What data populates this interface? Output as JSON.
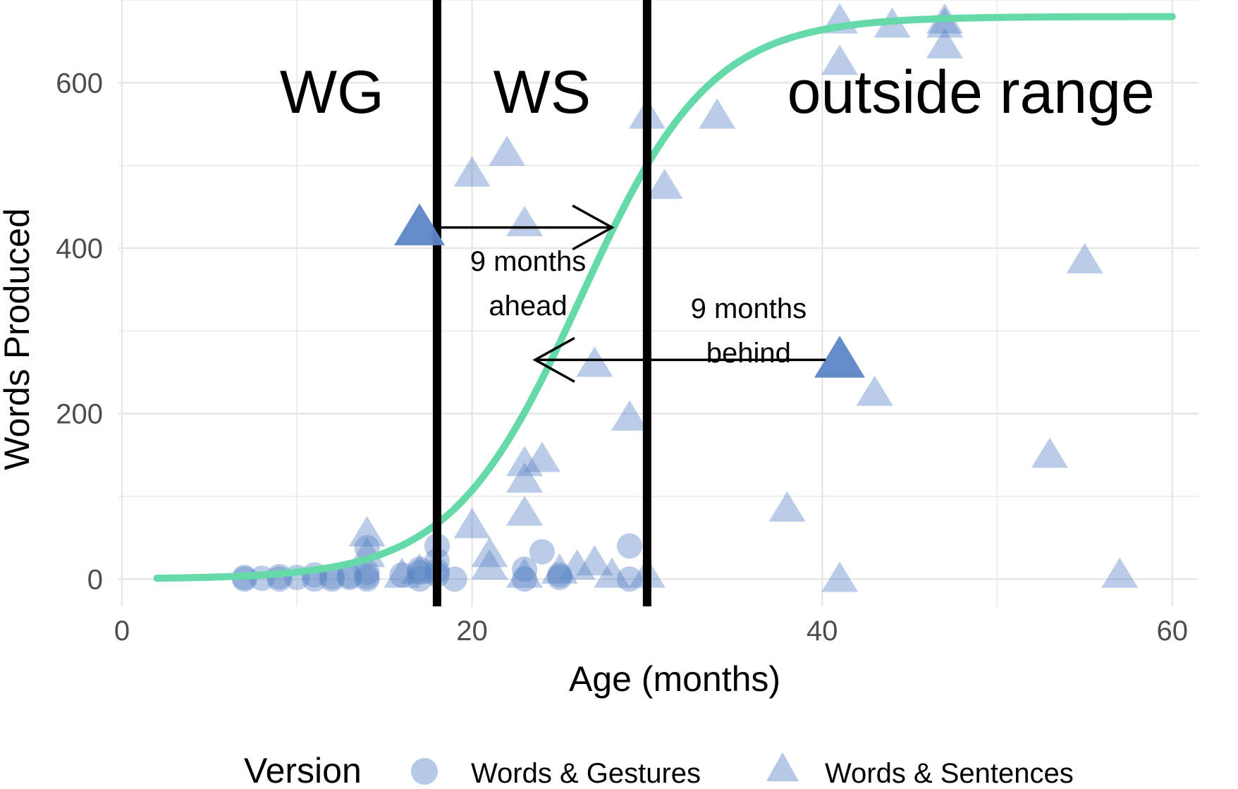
{
  "chart_data": {
    "type": "scatter",
    "xlabel": "Age (months)",
    "ylabel": "Words Produced",
    "xlim": [
      -0.2,
      61.5
    ],
    "ylim": [
      -33,
      700
    ],
    "x_ticks": [
      0,
      20,
      40,
      60
    ],
    "y_ticks": [
      0,
      200,
      400,
      600
    ],
    "grid": true,
    "colors": {
      "points": "#5b86c6",
      "curve": "#66d9a8",
      "divider": "#000000",
      "grid": "#e6e6e6"
    },
    "dividers": [
      18,
      30
    ],
    "regions": [
      {
        "label": "WG",
        "x": 12
      },
      {
        "label": "WS",
        "x": 24
      },
      {
        "label": "outside range",
        "x": 48.5
      }
    ],
    "curve": {
      "name": "",
      "type": "logistic",
      "asymptote": 680,
      "midpoint": 26.2,
      "rate": 0.27,
      "x_range": [
        2,
        60
      ]
    },
    "series": [
      {
        "name": "Words & Gestures",
        "shape": "circle",
        "points": [
          [
            7,
            0
          ],
          [
            7,
            2
          ],
          [
            8,
            1
          ],
          [
            9,
            0
          ],
          [
            9,
            3
          ],
          [
            10,
            2
          ],
          [
            11,
            0
          ],
          [
            11,
            5
          ],
          [
            12,
            0
          ],
          [
            12,
            3
          ],
          [
            13,
            4
          ],
          [
            13,
            2
          ],
          [
            14,
            0
          ],
          [
            14,
            3
          ],
          [
            14,
            8
          ],
          [
            14,
            38
          ],
          [
            16,
            5
          ],
          [
            17,
            0
          ],
          [
            17,
            8
          ],
          [
            17,
            12
          ],
          [
            18,
            5
          ],
          [
            18,
            10
          ],
          [
            18,
            22
          ],
          [
            18,
            40
          ],
          [
            19,
            0
          ],
          [
            23,
            0
          ],
          [
            23,
            12
          ],
          [
            24,
            33
          ],
          [
            25,
            2
          ],
          [
            25,
            5
          ],
          [
            29,
            0
          ],
          [
            29,
            40
          ]
        ]
      },
      {
        "name": "Words & Sentences",
        "shape": "triangle",
        "points": [
          [
            14,
            55
          ],
          [
            14,
            30
          ],
          [
            16,
            5
          ],
          [
            17,
            10
          ],
          [
            20,
            65
          ],
          [
            20,
            490
          ],
          [
            21,
            30
          ],
          [
            21,
            15
          ],
          [
            22,
            515
          ],
          [
            23,
            430
          ],
          [
            23,
            140
          ],
          [
            23,
            120
          ],
          [
            23,
            80
          ],
          [
            23,
            5
          ],
          [
            24,
            145
          ],
          [
            25,
            10
          ],
          [
            26,
            15
          ],
          [
            27,
            260
          ],
          [
            27,
            20
          ],
          [
            28,
            5
          ],
          [
            29,
            195
          ],
          [
            30,
            5
          ],
          [
            30,
            560
          ],
          [
            31,
            475
          ],
          [
            34,
            560
          ],
          [
            38,
            85
          ],
          [
            41,
            675
          ],
          [
            41,
            625
          ],
          [
            41,
            0
          ],
          [
            43,
            225
          ],
          [
            44,
            670
          ],
          [
            47,
            675
          ],
          [
            47,
            670
          ],
          [
            47,
            645
          ],
          [
            53,
            150
          ],
          [
            55,
            385
          ],
          [
            57,
            5
          ]
        ]
      }
    ],
    "highlighted_points": [
      {
        "x": 17,
        "y": 425,
        "shape": "triangle"
      },
      {
        "x": 41,
        "y": 265,
        "shape": "triangle"
      }
    ],
    "annotations": [
      {
        "line1": "9 months",
        "line2": "ahead",
        "from": [
          18,
          425
        ],
        "to": [
          28,
          425
        ]
      },
      {
        "line1": "9 months",
        "line2": "behind",
        "from": [
          40.2,
          265
        ],
        "to": [
          23.6,
          265
        ]
      }
    ],
    "legend": {
      "position": "bottom",
      "title": "Version",
      "entries": [
        {
          "label": "Words & Gestures",
          "shape": "circle"
        },
        {
          "label": "Words & Sentences",
          "shape": "triangle"
        }
      ]
    }
  }
}
